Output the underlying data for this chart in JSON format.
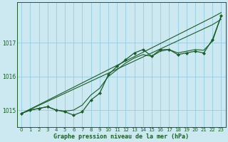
{
  "xlabel": "Graphe pression niveau de la mer (hPa)",
  "background_color": "#cce8f0",
  "grid_color": "#99cce0",
  "line_color": "#1a5c2a",
  "hours": [
    0,
    1,
    2,
    3,
    4,
    5,
    6,
    7,
    8,
    9,
    10,
    11,
    12,
    13,
    14,
    15,
    16,
    17,
    18,
    19,
    20,
    21,
    22,
    23
  ],
  "pressure_main": [
    1014.9,
    1015.0,
    1015.05,
    1015.1,
    1015.0,
    1014.95,
    1014.85,
    1014.95,
    1015.3,
    1015.5,
    1016.05,
    1016.3,
    1016.5,
    1016.7,
    1016.8,
    1016.6,
    1016.8,
    1016.8,
    1016.65,
    1016.7,
    1016.75,
    1016.7,
    1017.1,
    1017.8
  ],
  "pressure_smooth": [
    1014.9,
    1015.0,
    1015.05,
    1015.1,
    1015.0,
    1014.97,
    1015.0,
    1015.15,
    1015.45,
    1015.65,
    1016.0,
    1016.2,
    1016.4,
    1016.55,
    1016.65,
    1016.6,
    1016.75,
    1016.8,
    1016.7,
    1016.75,
    1016.8,
    1016.78,
    1017.05,
    1017.8
  ],
  "pressure_line1": [
    1014.9,
    1015.03,
    1015.16,
    1015.29,
    1015.42,
    1015.55,
    1015.68,
    1015.81,
    1015.94,
    1016.07,
    1016.2,
    1016.33,
    1016.46,
    1016.59,
    1016.72,
    1016.85,
    1016.98,
    1017.11,
    1017.24,
    1017.37,
    1017.5,
    1017.63,
    1017.76,
    1017.9
  ],
  "pressure_line2": [
    1014.9,
    1015.02,
    1015.14,
    1015.26,
    1015.38,
    1015.5,
    1015.62,
    1015.74,
    1015.86,
    1015.98,
    1016.1,
    1016.22,
    1016.34,
    1016.46,
    1016.58,
    1016.7,
    1016.82,
    1016.94,
    1017.06,
    1017.18,
    1017.3,
    1017.42,
    1017.54,
    1017.7
  ],
  "ylim_min": 1014.5,
  "ylim_max": 1018.2,
  "yticks": [
    1015,
    1016,
    1017
  ],
  "xticks": [
    0,
    1,
    2,
    3,
    4,
    5,
    6,
    7,
    8,
    9,
    10,
    11,
    12,
    13,
    14,
    15,
    16,
    17,
    18,
    19,
    20,
    21,
    22,
    23
  ],
  "tick_fontsize": 5.0,
  "xlabel_fontsize": 6.0
}
